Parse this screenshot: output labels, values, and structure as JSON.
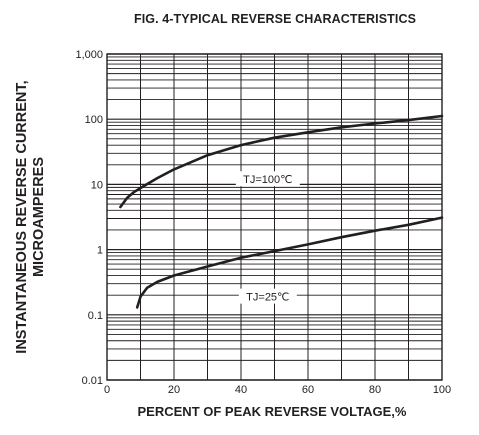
{
  "chart_data": {
    "type": "line",
    "title": "FIG. 4-TYPICAL REVERSE CHARACTERISTICS",
    "xlabel": "PERCENT OF PEAK REVERSE VOLTAGE,%",
    "ylabel": [
      "INSTANTANEOUS REVERSE CURRENT,",
      "MICROAMPERES"
    ],
    "xlim": [
      0,
      100
    ],
    "ylim": [
      0.01,
      1000
    ],
    "yscale": "log",
    "grid": true,
    "x_ticks": [
      "0",
      "20",
      "40",
      "60",
      "80",
      "100"
    ],
    "y_ticks": [
      "0.01",
      "0.1",
      "1",
      "10",
      "100",
      "1,000"
    ],
    "series": [
      {
        "name": "TJ=100℃",
        "x": [
          4,
          6,
          8,
          10,
          15,
          20,
          30,
          40,
          50,
          60,
          70,
          80,
          90,
          100
        ],
        "y": [
          4.5,
          6.2,
          7.6,
          8.8,
          12.5,
          17,
          28,
          40,
          52,
          63,
          75,
          86,
          97,
          112
        ]
      },
      {
        "name": "TJ=25℃",
        "x": [
          9,
          10,
          12,
          15,
          20,
          30,
          40,
          50,
          60,
          70,
          80,
          90,
          100
        ],
        "y": [
          0.13,
          0.19,
          0.26,
          0.32,
          0.4,
          0.55,
          0.75,
          0.95,
          1.2,
          1.55,
          1.95,
          2.4,
          3.1
        ]
      }
    ]
  }
}
